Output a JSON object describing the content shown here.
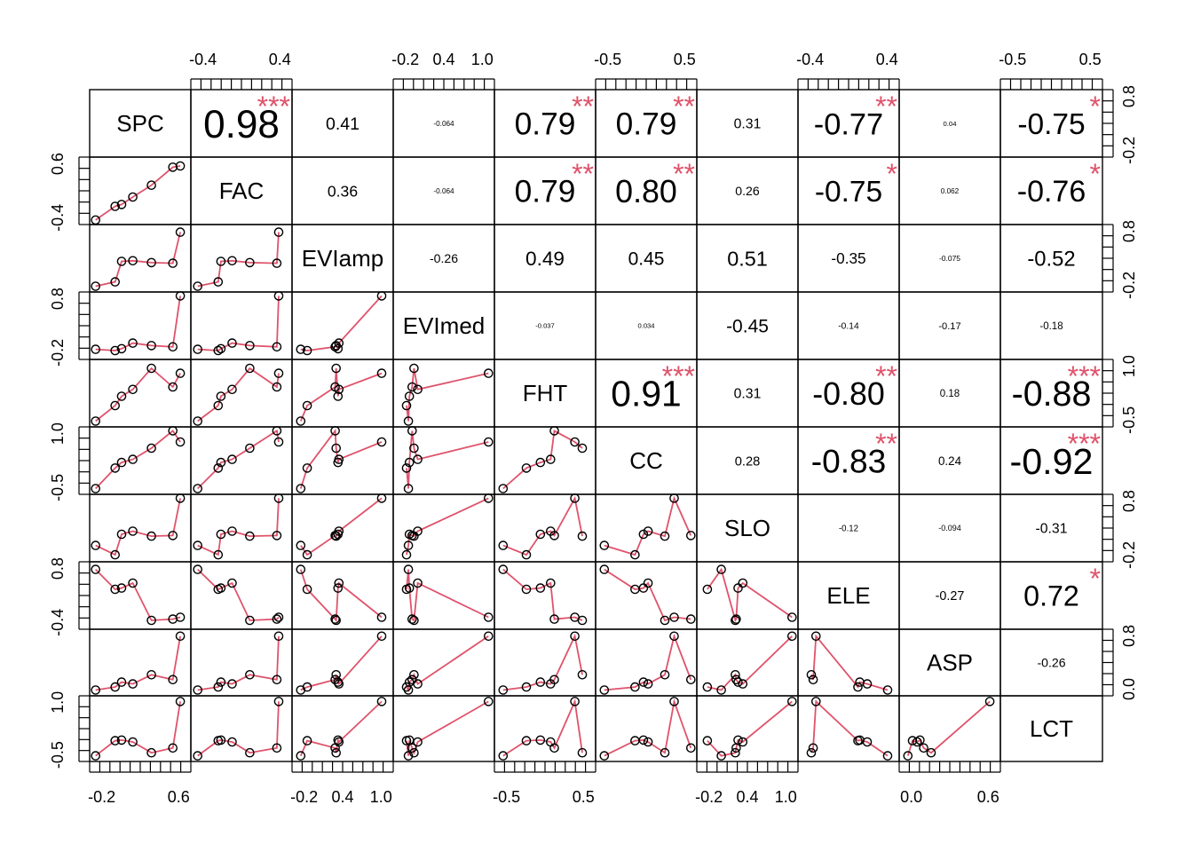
{
  "chart_data": {
    "type": "scatter",
    "subtype": "correlation-matrix",
    "variables": [
      "SPC",
      "FAC",
      "EVIamp",
      "EVImed",
      "FHT",
      "CC",
      "SLO",
      "ELE",
      "ASP",
      "LCT"
    ],
    "correlations": [
      {
        "row": 0,
        "col": 1,
        "r": "0.98",
        "stars": "***"
      },
      {
        "row": 0,
        "col": 2,
        "r": "0.41",
        "stars": ""
      },
      {
        "row": 0,
        "col": 3,
        "r": "-0.064",
        "stars": ""
      },
      {
        "row": 0,
        "col": 4,
        "r": "0.79",
        "stars": "**"
      },
      {
        "row": 0,
        "col": 5,
        "r": "0.79",
        "stars": "**"
      },
      {
        "row": 0,
        "col": 6,
        "r": "0.31",
        "stars": ""
      },
      {
        "row": 0,
        "col": 7,
        "r": "-0.77",
        "stars": "**"
      },
      {
        "row": 0,
        "col": 8,
        "r": "0.04",
        "stars": ""
      },
      {
        "row": 0,
        "col": 9,
        "r": "-0.75",
        "stars": "*"
      },
      {
        "row": 1,
        "col": 2,
        "r": "0.36",
        "stars": ""
      },
      {
        "row": 1,
        "col": 3,
        "r": "-0.064",
        "stars": ""
      },
      {
        "row": 1,
        "col": 4,
        "r": "0.79",
        "stars": "**"
      },
      {
        "row": 1,
        "col": 5,
        "r": "0.80",
        "stars": "**"
      },
      {
        "row": 1,
        "col": 6,
        "r": "0.26",
        "stars": ""
      },
      {
        "row": 1,
        "col": 7,
        "r": "-0.75",
        "stars": "*"
      },
      {
        "row": 1,
        "col": 8,
        "r": "0.062",
        "stars": ""
      },
      {
        "row": 1,
        "col": 9,
        "r": "-0.76",
        "stars": "*"
      },
      {
        "row": 2,
        "col": 3,
        "r": "-0.26",
        "stars": ""
      },
      {
        "row": 2,
        "col": 4,
        "r": "0.49",
        "stars": ""
      },
      {
        "row": 2,
        "col": 5,
        "r": "0.45",
        "stars": ""
      },
      {
        "row": 2,
        "col": 6,
        "r": "0.51",
        "stars": ""
      },
      {
        "row": 2,
        "col": 7,
        "r": "-0.35",
        "stars": ""
      },
      {
        "row": 2,
        "col": 8,
        "r": "-0.075",
        "stars": ""
      },
      {
        "row": 2,
        "col": 9,
        "r": "-0.52",
        "stars": ""
      },
      {
        "row": 3,
        "col": 4,
        "r": "-0.037",
        "stars": ""
      },
      {
        "row": 3,
        "col": 5,
        "r": "0.034",
        "stars": ""
      },
      {
        "row": 3,
        "col": 6,
        "r": "-0.45",
        "stars": ""
      },
      {
        "row": 3,
        "col": 7,
        "r": "-0.14",
        "stars": ""
      },
      {
        "row": 3,
        "col": 8,
        "r": "-0.17",
        "stars": ""
      },
      {
        "row": 3,
        "col": 9,
        "r": "-0.18",
        "stars": ""
      },
      {
        "row": 4,
        "col": 5,
        "r": "0.91",
        "stars": "***"
      },
      {
        "row": 4,
        "col": 6,
        "r": "0.31",
        "stars": ""
      },
      {
        "row": 4,
        "col": 7,
        "r": "-0.80",
        "stars": "**"
      },
      {
        "row": 4,
        "col": 8,
        "r": "0.18",
        "stars": ""
      },
      {
        "row": 4,
        "col": 9,
        "r": "-0.88",
        "stars": "***"
      },
      {
        "row": 5,
        "col": 6,
        "r": "0.28",
        "stars": ""
      },
      {
        "row": 5,
        "col": 7,
        "r": "-0.83",
        "stars": "**"
      },
      {
        "row": 5,
        "col": 8,
        "r": "0.24",
        "stars": ""
      },
      {
        "row": 5,
        "col": 9,
        "r": "-0.92",
        "stars": "***"
      },
      {
        "row": 6,
        "col": 7,
        "r": "-0.12",
        "stars": ""
      },
      {
        "row": 6,
        "col": 8,
        "r": "-0.094",
        "stars": ""
      },
      {
        "row": 6,
        "col": 9,
        "r": "-0.31",
        "stars": ""
      },
      {
        "row": 7,
        "col": 8,
        "r": "-0.27",
        "stars": ""
      },
      {
        "row": 7,
        "col": 9,
        "r": "0.72",
        "stars": "*"
      },
      {
        "row": 8,
        "col": 9,
        "r": "-0.26",
        "stars": ""
      }
    ],
    "top_axes": [
      {
        "col": 1,
        "ticks": [
          "-0.4",
          "0.4"
        ]
      },
      {
        "col": 3,
        "ticks": [
          "-0.2",
          "0.4",
          "1.0"
        ]
      },
      {
        "col": 5,
        "ticks": [
          "-0.5",
          "0.5"
        ]
      },
      {
        "col": 7,
        "ticks": [
          "-0.4",
          "0.4"
        ]
      },
      {
        "col": 9,
        "ticks": [
          "-0.5",
          "0.5"
        ]
      }
    ],
    "bottom_axes": [
      {
        "col": 0,
        "ticks": [
          "-0.2",
          "0.6"
        ]
      },
      {
        "col": 2,
        "ticks": [
          "-0.2",
          "0.4",
          "1.0"
        ]
      },
      {
        "col": 4,
        "ticks": [
          "-0.5",
          "0.5"
        ]
      },
      {
        "col": 6,
        "ticks": [
          "-0.2",
          "0.4",
          "1.0"
        ]
      },
      {
        "col": 8,
        "ticks": [
          "0.0",
          "0.6"
        ]
      }
    ],
    "left_axes": [
      {
        "row": 1,
        "ticks": [
          "-0.4",
          "0.6"
        ]
      },
      {
        "row": 3,
        "ticks": [
          "-0.2",
          "0.8"
        ]
      },
      {
        "row": 5,
        "ticks": [
          "-0.5",
          "1.0"
        ]
      },
      {
        "row": 7,
        "ticks": [
          "-0.4",
          "0.8"
        ]
      },
      {
        "row": 9,
        "ticks": [
          "-0.5",
          "1.0"
        ]
      }
    ],
    "right_axes": [
      {
        "row": 0,
        "ticks": [
          "-0.2",
          "0.8"
        ]
      },
      {
        "row": 2,
        "ticks": [
          "-0.2",
          "0.8"
        ]
      },
      {
        "row": 4,
        "ticks": [
          "-0.5",
          "1.0"
        ]
      },
      {
        "row": 6,
        "ticks": [
          "-0.2",
          "0.8"
        ]
      },
      {
        "row": 8,
        "ticks": [
          "0.0",
          "0.8"
        ]
      }
    ],
    "scatter_points_normalized": {
      "SPC": [
        0.02,
        0.23,
        0.3,
        0.42,
        0.62,
        0.85,
        0.93
      ],
      "FAC": [
        0.03,
        0.25,
        0.28,
        0.4,
        0.59,
        0.88,
        0.9
      ],
      "EVIamp": [
        0.05,
        0.12,
        0.45,
        0.46,
        0.43,
        0.42,
        0.92
      ],
      "EVImed": [
        0.12,
        0.1,
        0.13,
        0.22,
        0.18,
        0.16,
        0.98
      ],
      "FHT": [
        0.05,
        0.3,
        0.45,
        0.56,
        0.9,
        0.6,
        0.82
      ],
      "CC": [
        0.05,
        0.38,
        0.47,
        0.52,
        0.7,
        0.98,
        0.8
      ],
      "SLO": [
        0.22,
        0.07,
        0.4,
        0.45,
        0.37,
        0.38,
        0.98
      ],
      "ELE": [
        0.92,
        0.6,
        0.62,
        0.7,
        0.1,
        0.12,
        0.15
      ],
      "ASP": [
        0.05,
        0.1,
        0.18,
        0.15,
        0.3,
        0.22,
        0.93
      ],
      "LCT": [
        0.05,
        0.3,
        0.31,
        0.28,
        0.1,
        0.18,
        0.95
      ]
    },
    "colors": {
      "points": "#000000",
      "smoother": "#DF536B",
      "stars": "#DF536B",
      "frame": "#000000"
    }
  }
}
